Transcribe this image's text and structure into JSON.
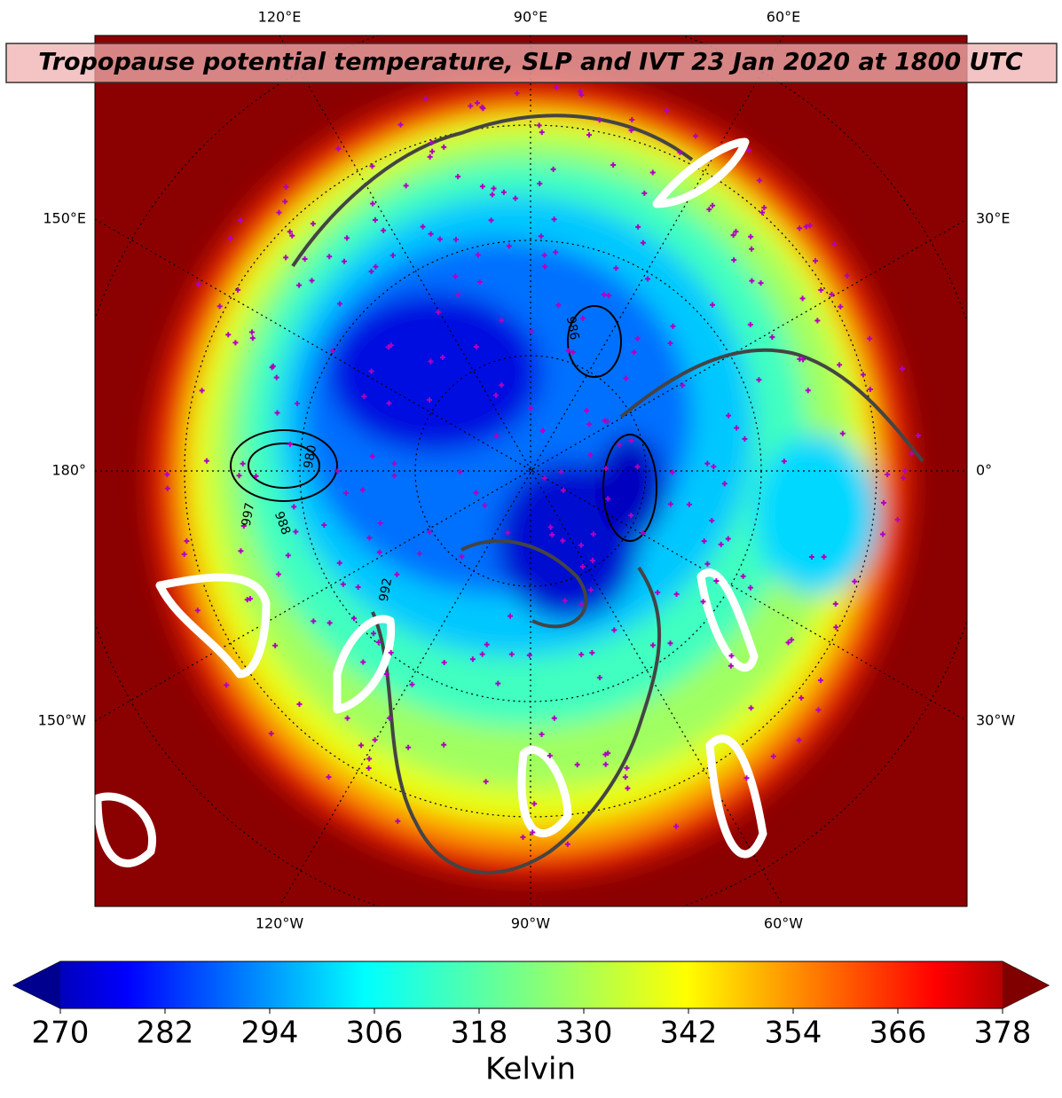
{
  "title": "Tropopause potential temperature, SLP and IVT 23 Jan 2020 at 1800 UTC",
  "map": {
    "top_labels": [
      "120°E",
      "90°E",
      "60°E"
    ],
    "bottom_labels": [
      "120°W",
      "90°W",
      "60°W"
    ],
    "left_labels": [
      "150°E",
      "180°",
      "150°W"
    ],
    "right_labels": [
      "30°E",
      "0°",
      "30°W"
    ],
    "contour_labels": [
      "986",
      "992",
      "980",
      "997",
      "988"
    ]
  },
  "colorbar": {
    "label": "Kelvin",
    "lim": [
      270,
      378
    ],
    "ticks": [
      270,
      282,
      294,
      306,
      318,
      330,
      342,
      354,
      366,
      378
    ]
  }
}
